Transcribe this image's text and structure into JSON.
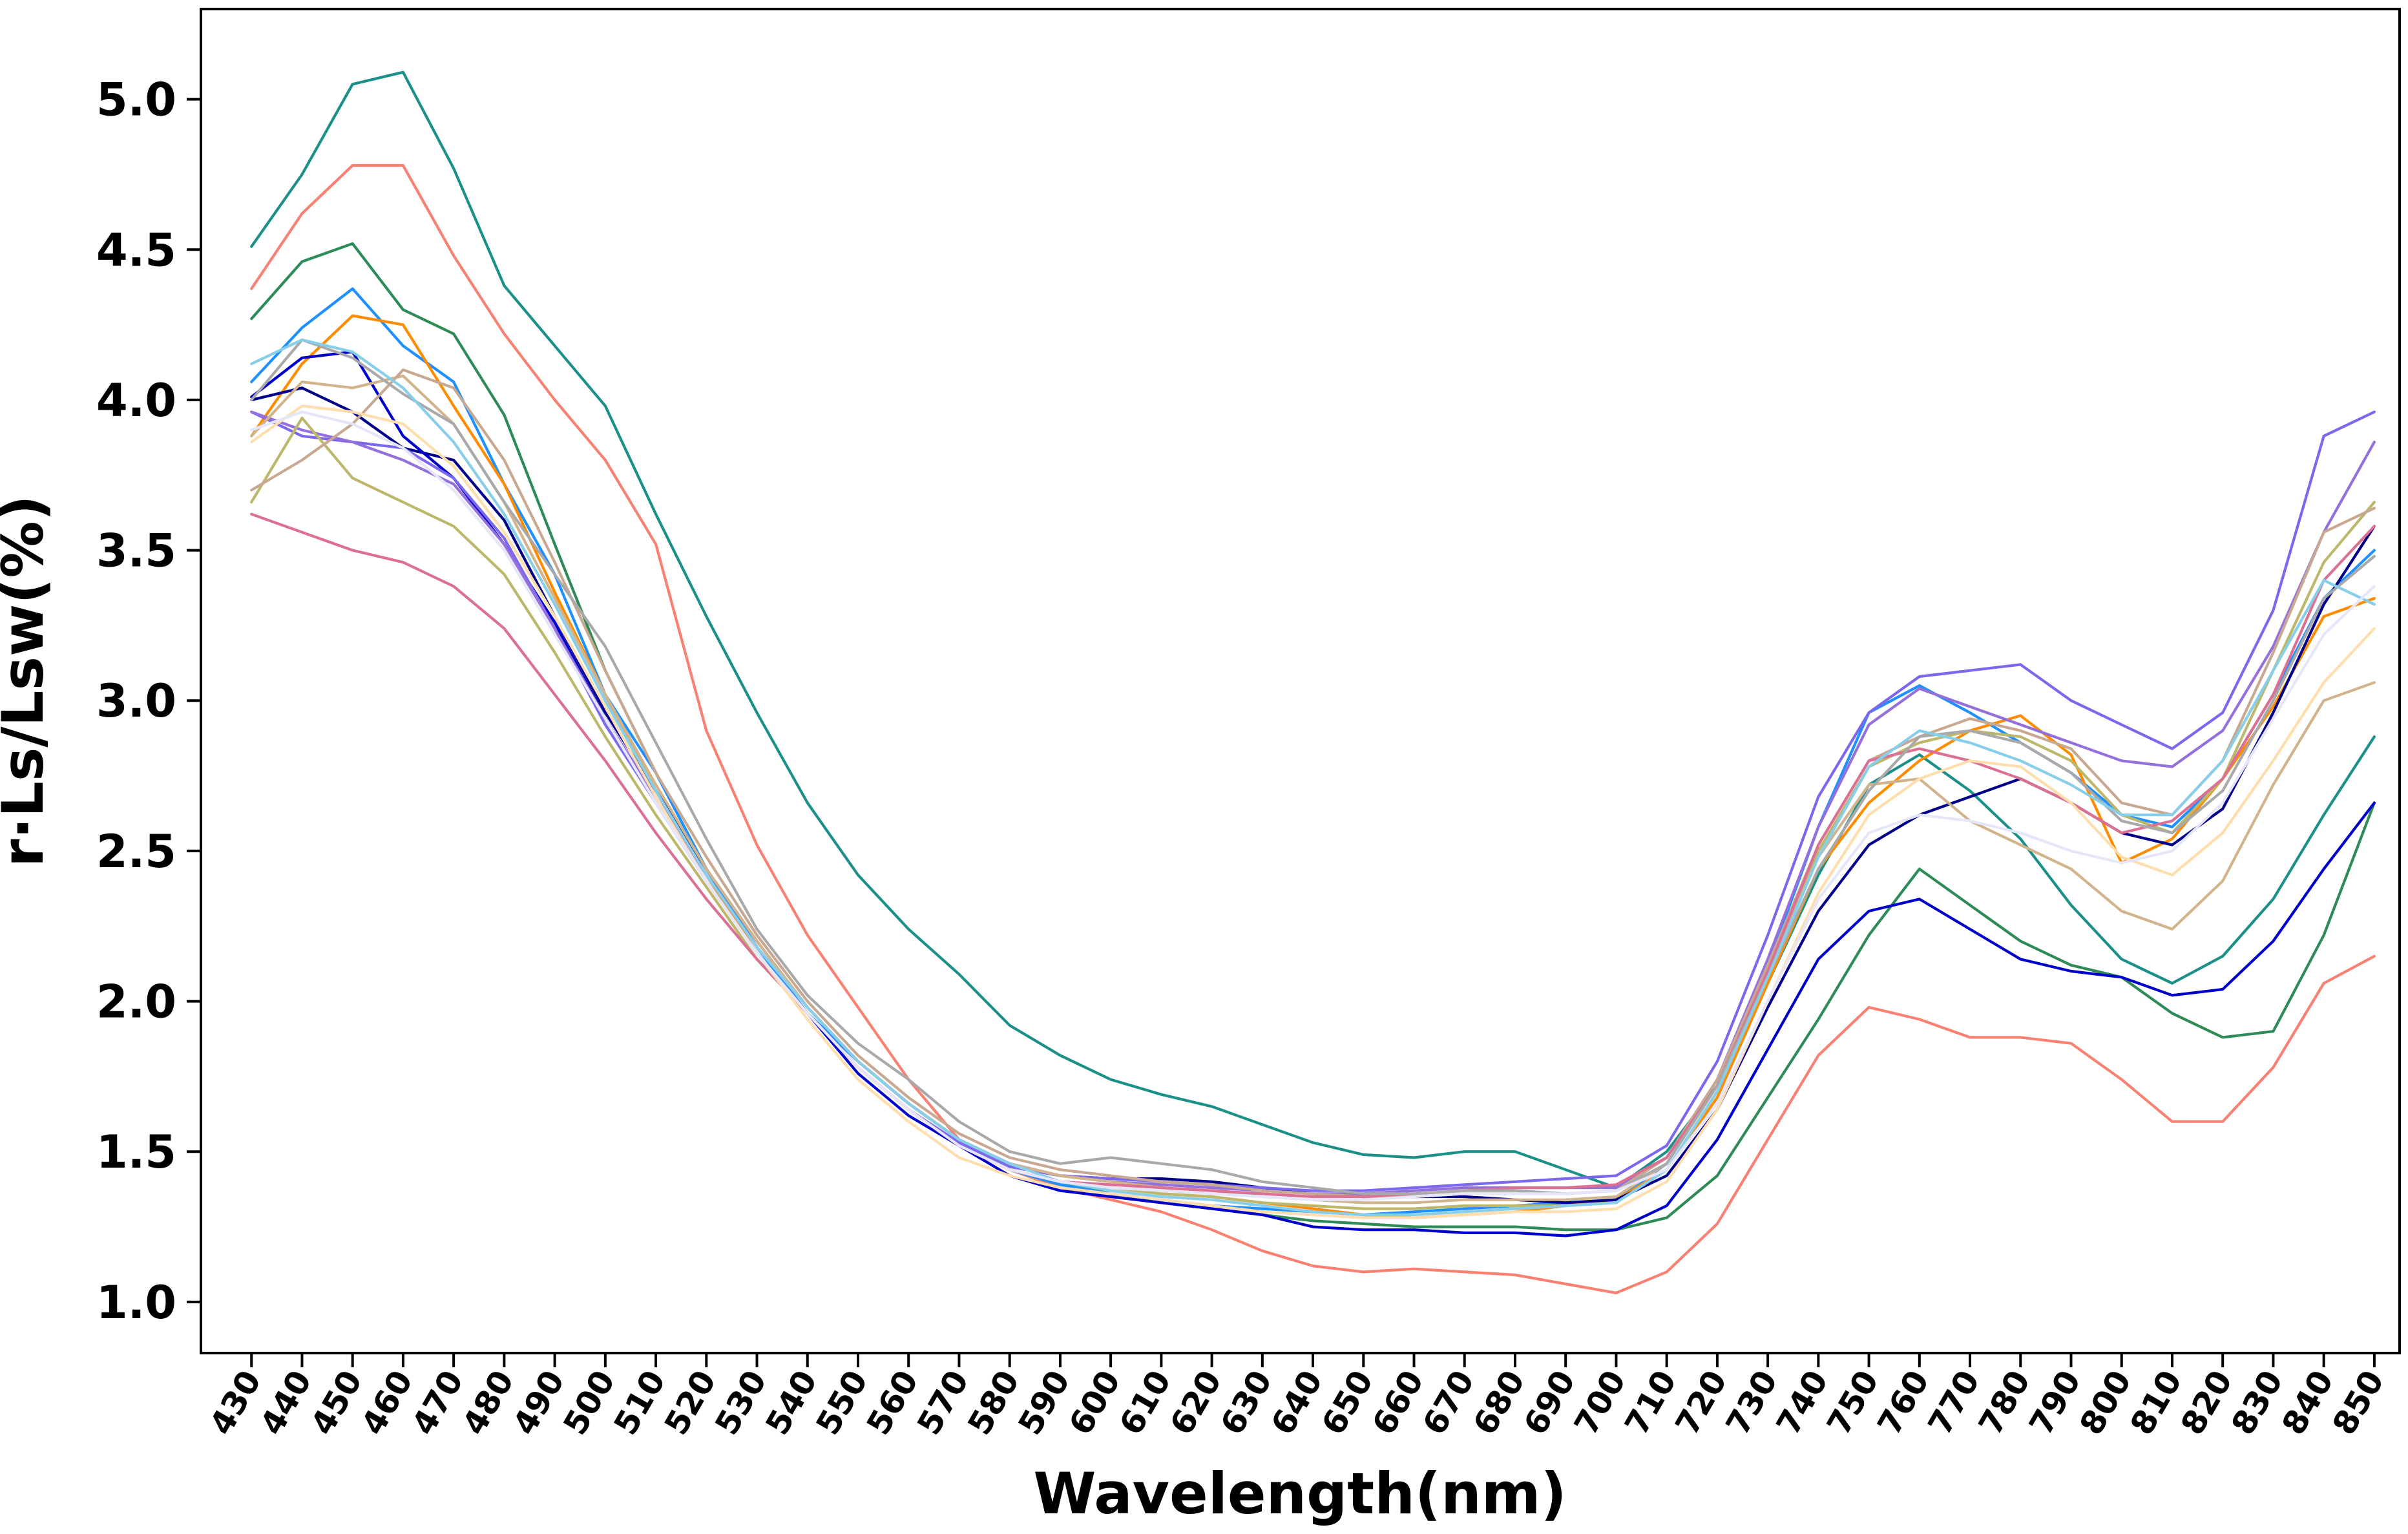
{
  "chart_data": {
    "type": "line",
    "title": "",
    "xlabel": "Wavelength(nm)",
    "ylabel": "r·Ls/Lsw(%)",
    "xlim": [
      420,
      855
    ],
    "ylim": [
      0.83,
      5.3
    ],
    "xticks": [
      430,
      440,
      450,
      460,
      470,
      480,
      490,
      500,
      510,
      520,
      530,
      540,
      550,
      560,
      570,
      580,
      590,
      600,
      610,
      620,
      630,
      640,
      650,
      660,
      670,
      680,
      690,
      700,
      710,
      720,
      730,
      740,
      750,
      760,
      770,
      780,
      790,
      800,
      810,
      820,
      830,
      840,
      850
    ],
    "xtick_labels": [
      "430",
      "440",
      "450",
      "460",
      "470",
      "480",
      "490",
      "500",
      "510",
      "520",
      "530",
      "540",
      "550",
      "560",
      "570",
      "580",
      "590",
      "600",
      "610",
      "620",
      "630",
      "640",
      "650",
      "660",
      "670",
      "680",
      "690",
      "700",
      "710",
      "720",
      "730",
      "740",
      "750",
      "760",
      "770",
      "780",
      "790",
      "800",
      "810",
      "820",
      "830",
      "840",
      "850"
    ],
    "yticks": [
      1.0,
      1.5,
      2.0,
      2.5,
      3.0,
      3.5,
      4.0,
      4.5,
      5.0
    ],
    "ytick_labels": [
      "1.0",
      "1.5",
      "2.0",
      "2.5",
      "3.0",
      "3.5",
      "4.0",
      "4.5",
      "5.0"
    ],
    "grid": false,
    "legend": "none",
    "x": [
      430,
      440,
      450,
      460,
      470,
      480,
      490,
      500,
      510,
      520,
      530,
      540,
      550,
      560,
      570,
      580,
      590,
      600,
      610,
      620,
      630,
      640,
      650,
      660,
      670,
      680,
      690,
      700,
      710,
      720,
      730,
      740,
      750,
      760,
      770,
      780,
      790,
      800,
      810,
      820,
      830,
      840,
      850
    ],
    "series": [
      {
        "color": "#1a9088",
        "values": [
          4.51,
          4.75,
          5.05,
          5.09,
          4.77,
          4.38,
          4.18,
          3.98,
          3.62,
          3.28,
          2.96,
          2.66,
          2.42,
          2.24,
          2.09,
          1.92,
          1.82,
          1.74,
          1.69,
          1.65,
          1.59,
          1.53,
          1.49,
          1.48,
          1.5,
          1.5,
          1.44,
          1.38,
          1.5,
          1.72,
          2.06,
          2.42,
          2.72,
          2.82,
          2.7,
          2.54,
          2.32,
          2.14,
          2.06,
          2.15,
          2.34,
          2.62,
          2.88
        ]
      },
      {
        "color": "#fa8072",
        "values": [
          4.37,
          4.62,
          4.78,
          4.78,
          4.48,
          4.22,
          4.0,
          3.8,
          3.52,
          2.9,
          2.52,
          2.22,
          1.98,
          1.74,
          1.54,
          1.44,
          1.38,
          1.34,
          1.3,
          1.24,
          1.17,
          1.12,
          1.1,
          1.11,
          1.1,
          1.09,
          1.06,
          1.03,
          1.1,
          1.26,
          1.54,
          1.82,
          1.98,
          1.94,
          1.88,
          1.88,
          1.86,
          1.74,
          1.6,
          1.6,
          1.78,
          2.06,
          2.15
        ]
      },
      {
        "color": "#2e8b57",
        "values": [
          4.27,
          4.46,
          4.52,
          4.3,
          4.22,
          3.95,
          3.52,
          3.1,
          2.76,
          2.44,
          2.18,
          1.96,
          1.8,
          1.66,
          1.54,
          1.44,
          1.4,
          1.36,
          1.33,
          1.31,
          1.29,
          1.27,
          1.26,
          1.25,
          1.25,
          1.25,
          1.24,
          1.24,
          1.28,
          1.42,
          1.68,
          1.94,
          2.22,
          2.44,
          2.32,
          2.2,
          2.12,
          2.08,
          1.96,
          1.88,
          1.9,
          2.22,
          2.66
        ]
      },
      {
        "color": "#1e90ff",
        "values": [
          4.06,
          4.24,
          4.37,
          4.18,
          4.06,
          3.72,
          3.42,
          3.02,
          2.76,
          2.44,
          2.18,
          1.96,
          1.8,
          1.66,
          1.54,
          1.44,
          1.39,
          1.36,
          1.34,
          1.32,
          1.31,
          1.3,
          1.29,
          1.3,
          1.31,
          1.32,
          1.33,
          1.34,
          1.46,
          1.72,
          2.12,
          2.58,
          2.96,
          3.05,
          2.96,
          2.86,
          2.76,
          2.62,
          2.58,
          2.74,
          3.02,
          3.34,
          3.5
        ]
      },
      {
        "color": "#ff8c00",
        "values": [
          3.88,
          4.12,
          4.28,
          4.25,
          3.98,
          3.72,
          3.36,
          3.02,
          2.7,
          2.42,
          2.16,
          1.96,
          1.78,
          1.64,
          1.52,
          1.44,
          1.4,
          1.38,
          1.36,
          1.35,
          1.33,
          1.31,
          1.29,
          1.28,
          1.29,
          1.3,
          1.32,
          1.34,
          1.44,
          1.68,
          2.06,
          2.44,
          2.66,
          2.8,
          2.9,
          2.95,
          2.82,
          2.46,
          2.54,
          2.74,
          2.98,
          3.28,
          3.34
        ]
      },
      {
        "color": "#00008b",
        "values": [
          4.0,
          4.04,
          3.96,
          3.84,
          3.8,
          3.6,
          3.28,
          2.96,
          2.7,
          2.44,
          2.2,
          1.98,
          1.8,
          1.66,
          1.54,
          1.46,
          1.42,
          1.41,
          1.41,
          1.4,
          1.38,
          1.36,
          1.35,
          1.35,
          1.35,
          1.34,
          1.33,
          1.34,
          1.42,
          1.64,
          1.98,
          2.3,
          2.52,
          2.62,
          2.68,
          2.74,
          2.66,
          2.56,
          2.52,
          2.64,
          2.96,
          3.32,
          3.58
        ]
      },
      {
        "color": "#0000cd",
        "values": [
          4.01,
          4.14,
          4.16,
          3.88,
          3.74,
          3.52,
          3.26,
          2.94,
          2.66,
          2.4,
          2.16,
          1.96,
          1.76,
          1.62,
          1.52,
          1.42,
          1.37,
          1.35,
          1.33,
          1.31,
          1.29,
          1.25,
          1.24,
          1.24,
          1.23,
          1.23,
          1.22,
          1.24,
          1.32,
          1.54,
          1.84,
          2.14,
          2.3,
          2.34,
          2.24,
          2.14,
          2.1,
          2.08,
          2.02,
          2.04,
          2.2,
          2.44,
          2.66
        ]
      },
      {
        "color": "#7b68ee",
        "values": [
          3.96,
          3.88,
          3.86,
          3.84,
          3.74,
          3.54,
          3.24,
          2.92,
          2.66,
          2.4,
          2.16,
          1.96,
          1.78,
          1.64,
          1.53,
          1.45,
          1.42,
          1.41,
          1.4,
          1.39,
          1.38,
          1.37,
          1.37,
          1.38,
          1.39,
          1.4,
          1.41,
          1.42,
          1.52,
          1.8,
          2.22,
          2.68,
          2.96,
          3.08,
          3.1,
          3.12,
          3.0,
          2.92,
          2.84,
          2.96,
          3.3,
          3.88,
          3.96
        ]
      },
      {
        "color": "#9370db",
        "values": [
          3.96,
          3.9,
          3.86,
          3.8,
          3.72,
          3.52,
          3.24,
          2.94,
          2.68,
          2.42,
          2.18,
          1.98,
          1.8,
          1.66,
          1.54,
          1.46,
          1.42,
          1.4,
          1.39,
          1.38,
          1.37,
          1.36,
          1.36,
          1.37,
          1.38,
          1.38,
          1.38,
          1.38,
          1.48,
          1.74,
          2.14,
          2.58,
          2.92,
          3.04,
          2.98,
          2.92,
          2.86,
          2.8,
          2.78,
          2.9,
          3.18,
          3.56,
          3.86
        ]
      },
      {
        "color": "#bdb76b",
        "values": [
          3.66,
          3.94,
          3.74,
          3.66,
          3.58,
          3.42,
          3.16,
          2.88,
          2.62,
          2.38,
          2.14,
          1.96,
          1.78,
          1.64,
          1.52,
          1.44,
          1.4,
          1.38,
          1.36,
          1.35,
          1.33,
          1.32,
          1.31,
          1.31,
          1.32,
          1.32,
          1.32,
          1.33,
          1.44,
          1.7,
          2.08,
          2.5,
          2.78,
          2.86,
          2.9,
          2.88,
          2.8,
          2.62,
          2.56,
          2.74,
          3.1,
          3.46,
          3.66
        ]
      },
      {
        "color": "#d2b48c",
        "values": [
          3.88,
          4.06,
          4.04,
          4.08,
          3.92,
          3.66,
          3.34,
          3.02,
          2.72,
          2.44,
          2.2,
          1.98,
          1.8,
          1.66,
          1.54,
          1.46,
          1.42,
          1.4,
          1.38,
          1.37,
          1.35,
          1.34,
          1.33,
          1.33,
          1.34,
          1.34,
          1.34,
          1.35,
          1.46,
          1.72,
          2.1,
          2.48,
          2.72,
          2.74,
          2.6,
          2.52,
          2.44,
          2.3,
          2.24,
          2.4,
          2.72,
          3.0,
          3.06
        ]
      },
      {
        "color": "#c8a890",
        "values": [
          3.7,
          3.8,
          3.92,
          4.1,
          4.04,
          3.8,
          3.46,
          3.1,
          2.76,
          2.48,
          2.22,
          2.0,
          1.82,
          1.68,
          1.56,
          1.48,
          1.44,
          1.42,
          1.4,
          1.39,
          1.37,
          1.36,
          1.35,
          1.35,
          1.36,
          1.36,
          1.36,
          1.37,
          1.48,
          1.74,
          2.12,
          2.52,
          2.8,
          2.88,
          2.94,
          2.9,
          2.84,
          2.66,
          2.62,
          2.8,
          3.16,
          3.56,
          3.64
        ]
      },
      {
        "color": "#db7093",
        "values": [
          3.62,
          3.56,
          3.5,
          3.46,
          3.38,
          3.24,
          3.02,
          2.8,
          2.56,
          2.34,
          2.14,
          1.96,
          1.78,
          1.64,
          1.52,
          1.44,
          1.4,
          1.39,
          1.38,
          1.37,
          1.36,
          1.35,
          1.35,
          1.36,
          1.37,
          1.38,
          1.38,
          1.39,
          1.48,
          1.72,
          2.1,
          2.52,
          2.8,
          2.84,
          2.8,
          2.74,
          2.66,
          2.56,
          2.6,
          2.74,
          3.02,
          3.4,
          3.58
        ]
      },
      {
        "color": "#a9a9a9",
        "values": [
          4.0,
          4.2,
          4.14,
          4.02,
          3.92,
          3.66,
          3.42,
          3.18,
          2.86,
          2.54,
          2.24,
          2.02,
          1.86,
          1.74,
          1.6,
          1.5,
          1.46,
          1.48,
          1.46,
          1.44,
          1.4,
          1.38,
          1.36,
          1.36,
          1.37,
          1.37,
          1.36,
          1.37,
          1.46,
          1.72,
          2.08,
          2.44,
          2.7,
          2.88,
          2.9,
          2.86,
          2.76,
          2.6,
          2.56,
          2.7,
          3.0,
          3.34,
          3.48
        ]
      },
      {
        "color": "#87ceeb",
        "values": [
          4.12,
          4.2,
          4.16,
          4.04,
          3.86,
          3.62,
          3.32,
          3.0,
          2.7,
          2.42,
          2.18,
          1.98,
          1.8,
          1.66,
          1.54,
          1.46,
          1.4,
          1.37,
          1.35,
          1.34,
          1.32,
          1.3,
          1.29,
          1.29,
          1.3,
          1.31,
          1.32,
          1.33,
          1.44,
          1.7,
          2.08,
          2.48,
          2.78,
          2.9,
          2.86,
          2.8,
          2.72,
          2.62,
          2.62,
          2.8,
          3.1,
          3.4,
          3.32
        ]
      },
      {
        "color": "#ffdead",
        "values": [
          3.86,
          3.98,
          3.96,
          3.92,
          3.78,
          3.56,
          3.28,
          2.98,
          2.68,
          2.4,
          2.16,
          1.94,
          1.74,
          1.6,
          1.48,
          1.42,
          1.38,
          1.36,
          1.34,
          1.32,
          1.3,
          1.29,
          1.28,
          1.28,
          1.29,
          1.3,
          1.3,
          1.31,
          1.4,
          1.64,
          2.0,
          2.36,
          2.62,
          2.74,
          2.8,
          2.78,
          2.66,
          2.48,
          2.42,
          2.56,
          2.8,
          3.06,
          3.24
        ]
      },
      {
        "color": "#e6e6fa",
        "values": [
          3.9,
          3.96,
          3.92,
          3.84,
          3.7,
          3.5,
          3.22,
          2.94,
          2.66,
          2.4,
          2.16,
          1.96,
          1.78,
          1.64,
          1.52,
          1.44,
          1.4,
          1.38,
          1.37,
          1.36,
          1.35,
          1.34,
          1.34,
          1.35,
          1.36,
          1.36,
          1.36,
          1.37,
          1.44,
          1.66,
          2.0,
          2.34,
          2.56,
          2.62,
          2.6,
          2.56,
          2.5,
          2.46,
          2.5,
          2.66,
          2.94,
          3.22,
          3.38
        ]
      }
    ]
  }
}
